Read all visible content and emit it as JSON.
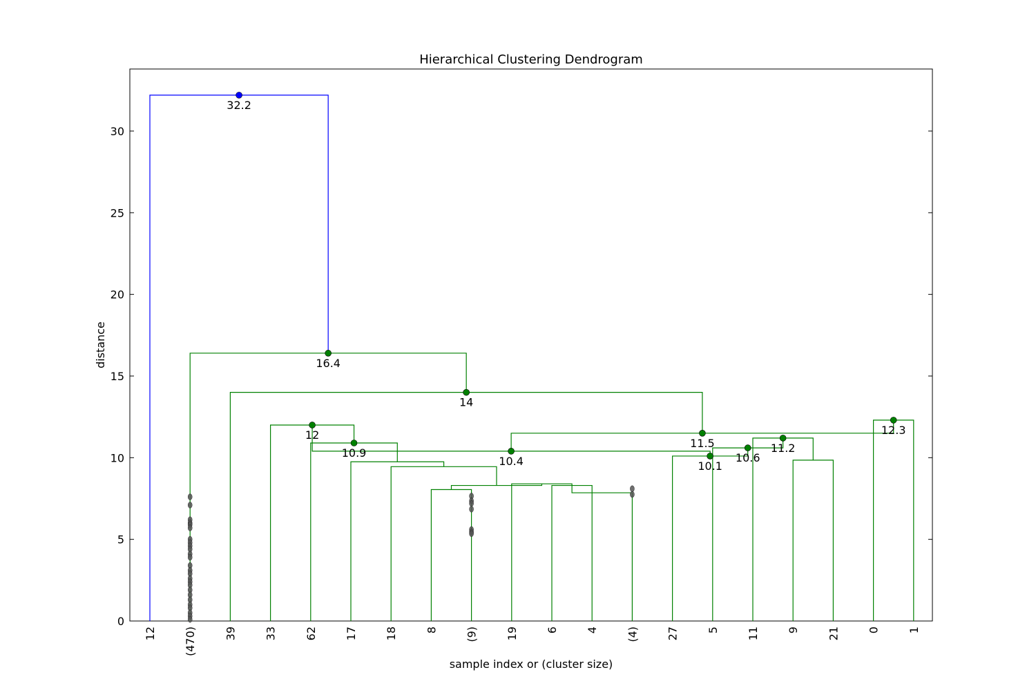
{
  "chart_data": {
    "type": "dendrogram",
    "title": "Hierarchical Clustering Dendrogram",
    "xlabel": "sample index or (cluster size)",
    "ylabel": "distance",
    "ylim": [
      0,
      32.2
    ],
    "yticks": [
      0,
      5,
      10,
      15,
      20,
      25,
      30
    ],
    "leaves": [
      "12",
      "(470)",
      "39",
      "33",
      "62",
      "17",
      "18",
      "8",
      "(9)",
      "19",
      "6",
      "4",
      "(4)",
      "27",
      "5",
      "11",
      "9",
      "21",
      "0",
      "1"
    ],
    "grid": false,
    "colors": {
      "top": "#0000ff",
      "cluster": "#008000",
      "axis": "#000000",
      "truncated_marker": "#555555"
    },
    "links": [
      {
        "left": 7,
        "right": 8,
        "height": 8.05,
        "color": "cluster"
      },
      {
        "left": 10,
        "right": 11,
        "height": 8.3,
        "color": "cluster",
        "rightLeafs": [
          11,
          12
        ]
      },
      {
        "left": 11,
        "right": 12,
        "height": 7.85,
        "color": "cluster"
      },
      {
        "left": 9,
        "right": 10,
        "height": 8.4,
        "color": "cluster"
      },
      {
        "left": 7,
        "right": 9,
        "height": 8.3,
        "color": "cluster"
      },
      {
        "left": 6,
        "right": 7,
        "height": 9.45,
        "color": "cluster"
      },
      {
        "left": 5,
        "right": 6,
        "height": 9.75,
        "color": "cluster"
      },
      {
        "left": 4,
        "right": 5,
        "height": 10.9,
        "label": "10.9",
        "color": "cluster"
      },
      {
        "left": 3,
        "right": 4,
        "height": 12.0,
        "label": "12",
        "color": "cluster"
      },
      {
        "left": 16,
        "right": 17,
        "height": 9.85,
        "color": "cluster"
      },
      {
        "left": 15,
        "right": 16,
        "height": 11.2,
        "label": "11.2",
        "color": "cluster"
      },
      {
        "left": 14,
        "right": 15,
        "height": 10.6,
        "label": "10.6",
        "color": "cluster"
      },
      {
        "left": 13,
        "right": 14,
        "height": 10.1,
        "label": "10.1",
        "color": "cluster"
      },
      {
        "left": 3,
        "right": 13,
        "height": 10.4,
        "label": "10.4",
        "color": "cluster"
      },
      {
        "left": 18,
        "right": 19,
        "height": 12.3,
        "label": "12.3",
        "color": "cluster"
      },
      {
        "left": 3,
        "right": 18,
        "height": 11.5,
        "label": "11.5",
        "color": "cluster"
      },
      {
        "left": 2,
        "right": 3,
        "height": 14.0,
        "label": "14",
        "color": "cluster"
      },
      {
        "left": 1,
        "right": 2,
        "height": 16.4,
        "label": "16.4",
        "color": "cluster"
      },
      {
        "left": 0,
        "right": 1,
        "height": 32.2,
        "label": "32.2",
        "color": "top"
      }
    ],
    "truncated_points": [
      {
        "leaf": 1,
        "heights": [
          7.6,
          7.1,
          6.2,
          6.0,
          5.9,
          5.7,
          5.0,
          4.8,
          4.6,
          4.4,
          4.1,
          3.9,
          3.4,
          3.1,
          2.9,
          2.6,
          2.4,
          2.2,
          1.9,
          1.6,
          1.3,
          1.0,
          0.8,
          0.5,
          0.3,
          0.1
        ]
      },
      {
        "leaf": 8,
        "heights": [
          7.65,
          7.35,
          7.2,
          6.85,
          5.6,
          5.45,
          5.35
        ]
      },
      {
        "leaf": 12,
        "heights": [
          8.1,
          7.75
        ]
      }
    ]
  }
}
